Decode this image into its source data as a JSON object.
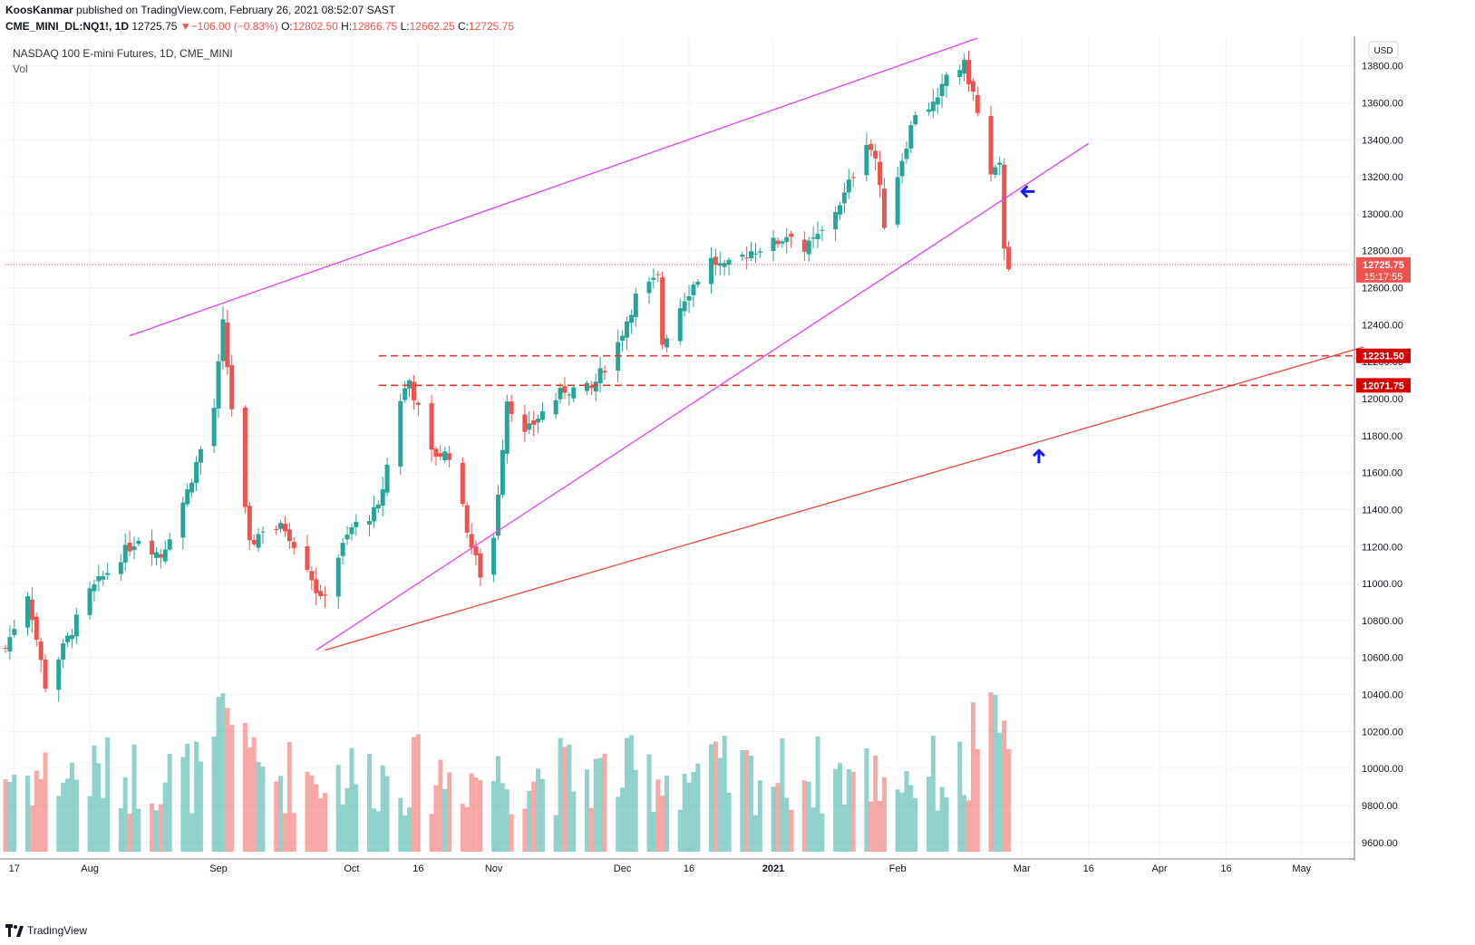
{
  "header": {
    "author": "KoosKanmar",
    "published_text": "published on TradingView.com, February 26, 2021 08:52:07 SAST",
    "symbol": "CME_MINI_DL:NQ1!, 1D",
    "last": "12725.75",
    "change": "−106.00 (−0.83%)",
    "open_label": "O:",
    "open": "12802.50",
    "high_label": "H:",
    "high": "12866.75",
    "low_label": "L:",
    "low": "12662.25",
    "close_label": "C:",
    "close": "12725.75"
  },
  "legend": {
    "title": "NASDAQ 100 E-mini Futures, 1D, CME_MINI",
    "vol": "Vol"
  },
  "currency": "USD",
  "price_tag": {
    "price": "12725.75",
    "countdown": "15:17:55"
  },
  "levels": [
    {
      "label": "12231.50",
      "value": 12231.5
    },
    {
      "label": "12071.75",
      "value": 12071.75
    }
  ],
  "footer": {
    "brand": "TradingView"
  },
  "colors": {
    "up": "#26a69a",
    "down": "#ef5350",
    "wedge": "#e040fb",
    "support": "#f44336",
    "level": "#e53935",
    "arrow": "#1a1aff"
  },
  "chart_data": {
    "type": "candlestick",
    "title": "NASDAQ 100 E-mini Futures, 1D, CME_MINI",
    "ylim": [
      9550,
      13950
    ],
    "y_ticks": [
      9600,
      9800,
      10000,
      10200,
      10400,
      10600,
      10800,
      11000,
      11200,
      11400,
      11600,
      11800,
      12000,
      12200,
      12400,
      12600,
      12800,
      13000,
      13200,
      13400,
      13600,
      13800
    ],
    "y_tick_labels": [
      "9600.00",
      "9800.00",
      "10000.00",
      "10200.00",
      "10400.00",
      "10600.00",
      "10800.00",
      "11000.00",
      "11200.00",
      "11400.00",
      "11600.00",
      "11800.00",
      "12000.00",
      "12200.00",
      "12400.00",
      "12600.00",
      "12800.00",
      "13000.00",
      "13200.00",
      "13400.00",
      "13600.00",
      "13800.00"
    ],
    "x_ticks": [
      {
        "label": "17",
        "date": "2020-07-17"
      },
      {
        "label": "Aug",
        "date": "2020-08-03"
      },
      {
        "label": "Sep",
        "date": "2020-09-01"
      },
      {
        "label": "Oct",
        "date": "2020-10-01"
      },
      {
        "label": "16",
        "date": "2020-10-16"
      },
      {
        "label": "Nov",
        "date": "2020-11-02"
      },
      {
        "label": "Dec",
        "date": "2020-12-01"
      },
      {
        "label": "16",
        "date": "2020-12-16"
      },
      {
        "label": "2021",
        "date": "2021-01-04"
      },
      {
        "label": "Feb",
        "date": "2021-02-01"
      },
      {
        "label": "Mar",
        "date": "2021-03-01"
      },
      {
        "label": "16",
        "date": "2021-03-16"
      },
      {
        "label": "Apr",
        "date": "2021-04-01"
      },
      {
        "label": "16",
        "date": "2021-04-16"
      },
      {
        "label": "May",
        "date": "2021-05-03"
      }
    ],
    "anchors": [
      [
        "2020-07-15",
        10650
      ],
      [
        "2020-07-20",
        10950
      ],
      [
        "2020-07-24",
        10450
      ],
      [
        "2020-07-29",
        10700
      ],
      [
        "2020-08-03",
        10950
      ],
      [
        "2020-08-10",
        11150
      ],
      [
        "2020-08-14",
        11250
      ],
      [
        "2020-08-19",
        11150
      ],
      [
        "2020-08-25",
        11500
      ],
      [
        "2020-08-31",
        11950
      ],
      [
        "2020-09-02",
        12400
      ],
      [
        "2020-09-04",
        11950
      ],
      [
        "2020-09-08",
        11200
      ],
      [
        "2020-09-11",
        11300
      ],
      [
        "2020-09-16",
        11300
      ],
      [
        "2020-09-21",
        11100
      ],
      [
        "2020-09-24",
        10900
      ],
      [
        "2020-09-28",
        11150
      ],
      [
        "2020-10-01",
        11300
      ],
      [
        "2020-10-07",
        11400
      ],
      [
        "2020-10-12",
        12000
      ],
      [
        "2020-10-14",
        12100
      ],
      [
        "2020-10-19",
        11700
      ],
      [
        "2020-10-23",
        11700
      ],
      [
        "2020-10-28",
        11200
      ],
      [
        "2020-10-30",
        11050
      ],
      [
        "2020-11-02",
        11250
      ],
      [
        "2020-11-05",
        12000
      ],
      [
        "2020-11-09",
        11800
      ],
      [
        "2020-11-12",
        11900
      ],
      [
        "2020-11-18",
        12050
      ],
      [
        "2020-11-24",
        12050
      ],
      [
        "2020-11-30",
        12300
      ],
      [
        "2020-12-04",
        12550
      ],
      [
        "2020-12-09",
        12650
      ],
      [
        "2020-12-10",
        12300
      ],
      [
        "2020-12-15",
        12550
      ],
      [
        "2020-12-21",
        12750
      ],
      [
        "2020-12-24",
        12700
      ],
      [
        "2020-12-30",
        12800
      ],
      [
        "2021-01-05",
        12850
      ],
      [
        "2021-01-08",
        12900
      ],
      [
        "2021-01-11",
        12800
      ],
      [
        "2021-01-15",
        12900
      ],
      [
        "2021-01-20",
        13100
      ],
      [
        "2021-01-25",
        13400
      ],
      [
        "2021-01-27",
        13300
      ],
      [
        "2021-01-29",
        12950
      ],
      [
        "2021-02-02",
        13300
      ],
      [
        "2021-02-05",
        13550
      ],
      [
        "2021-02-10",
        13600
      ],
      [
        "2021-02-12",
        13750
      ],
      [
        "2021-02-16",
        13800
      ],
      [
        "2021-02-18",
        13650
      ],
      [
        "2021-02-22",
        13200
      ],
      [
        "2021-02-24",
        13250
      ],
      [
        "2021-02-25",
        12830
      ],
      [
        "2021-02-26",
        12725.75
      ]
    ],
    "volume_scale": [
      0,
      1
    ],
    "wedge_upper": {
      "from": [
        "2020-08-12",
        12340
      ],
      "to": [
        "2021-02-19",
        13950
      ]
    },
    "wedge_lower": {
      "from": [
        "2020-09-23",
        10640
      ],
      "to": [
        "2021-03-16",
        13380
      ]
    },
    "support_line": {
      "from": [
        "2020-09-25",
        10640
      ],
      "to": [
        "2021-05-17",
        12280
      ]
    },
    "annotations": [
      "arrow-left at 2021-03-01 ~13120",
      "arrow-up at 2021-03-04 ~11700"
    ]
  }
}
